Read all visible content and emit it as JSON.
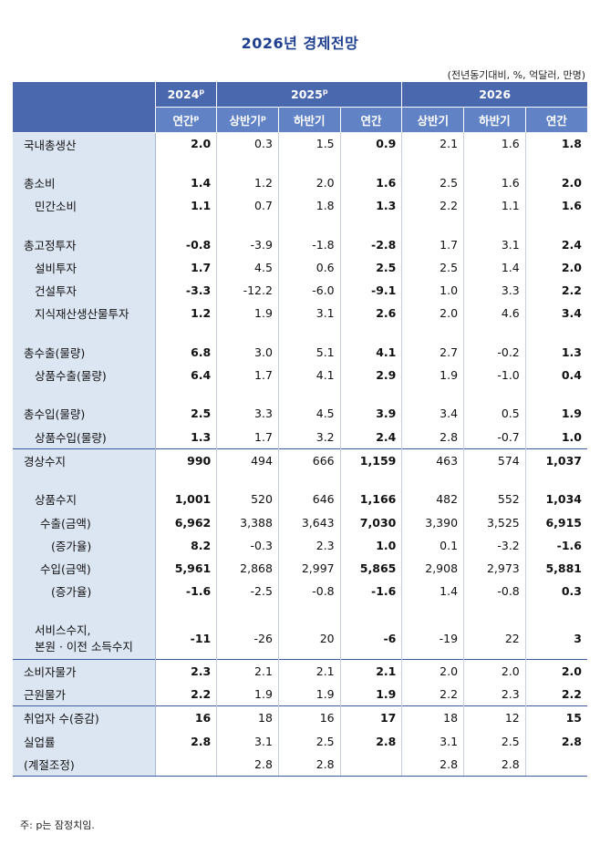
{
  "title": "2026년 경제전망",
  "unit": "(전년동기대비, %, 억달러, 만명)",
  "header": {
    "years": [
      {
        "label": "2024",
        "sup": "p"
      },
      {
        "label": "2025",
        "sup": "p"
      },
      {
        "label": "2026",
        "sup": ""
      }
    ],
    "periods": [
      {
        "label": "연간",
        "sup": "p"
      },
      {
        "label": "상반기",
        "sup": "p"
      },
      {
        "label": "하반기",
        "sup": ""
      },
      {
        "label": "연간",
        "sup": ""
      },
      {
        "label": "상반기",
        "sup": ""
      },
      {
        "label": "하반기",
        "sup": ""
      },
      {
        "label": "연간",
        "sup": ""
      }
    ]
  },
  "rows": [
    {
      "label": "국내총생산",
      "indent": 0,
      "values": [
        "2.0",
        "0.3",
        "1.5",
        "0.9",
        "2.1",
        "1.6",
        "1.8"
      ]
    },
    {
      "gap": true
    },
    {
      "label": "총소비",
      "indent": 0,
      "values": [
        "1.4",
        "1.2",
        "2.0",
        "1.6",
        "2.5",
        "1.6",
        "2.0"
      ]
    },
    {
      "label": "민간소비",
      "indent": 1,
      "values": [
        "1.1",
        "0.7",
        "1.8",
        "1.3",
        "2.2",
        "1.1",
        "1.6"
      ]
    },
    {
      "gap": true
    },
    {
      "label": "총고정투자",
      "indent": 0,
      "values": [
        "-0.8",
        "-3.9",
        "-1.8",
        "-2.8",
        "1.7",
        "3.1",
        "2.4"
      ]
    },
    {
      "label": "설비투자",
      "indent": 1,
      "values": [
        "1.7",
        "4.5",
        "0.6",
        "2.5",
        "2.5",
        "1.4",
        "2.0"
      ]
    },
    {
      "label": "건설투자",
      "indent": 1,
      "values": [
        "-3.3",
        "-12.2",
        "-6.0",
        "-9.1",
        "1.0",
        "3.3",
        "2.2"
      ]
    },
    {
      "label": "지식재산생산물투자",
      "indent": 1,
      "values": [
        "1.2",
        "1.9",
        "3.1",
        "2.6",
        "2.0",
        "4.6",
        "3.4"
      ]
    },
    {
      "gap": true
    },
    {
      "label": "총수출(물량)",
      "indent": 0,
      "values": [
        "6.8",
        "3.0",
        "5.1",
        "4.1",
        "2.7",
        "-0.2",
        "1.3"
      ]
    },
    {
      "label": "상품수출(물량)",
      "indent": 1,
      "values": [
        "6.4",
        "1.7",
        "4.1",
        "2.9",
        "1.9",
        "-1.0",
        "0.4"
      ]
    },
    {
      "gap": true
    },
    {
      "label": "총수입(물량)",
      "indent": 0,
      "values": [
        "2.5",
        "3.3",
        "4.5",
        "3.9",
        "3.4",
        "0.5",
        "1.9"
      ]
    },
    {
      "label": "상품수입(물량)",
      "indent": 1,
      "values": [
        "1.3",
        "1.7",
        "3.2",
        "2.4",
        "2.8",
        "-0.7",
        "1.0"
      ]
    },
    {
      "label": "경상수지",
      "indent": 0,
      "sep": true,
      "values": [
        "990",
        "494",
        "666",
        "1,159",
        "463",
        "574",
        "1,037"
      ]
    },
    {
      "gap": true
    },
    {
      "label": "상품수지",
      "indent": 1,
      "values": [
        "1,001",
        "520",
        "646",
        "1,166",
        "482",
        "552",
        "1,034"
      ]
    },
    {
      "label": "수출(금액)",
      "indent": 2,
      "values": [
        "6,962",
        "3,388",
        "3,643",
        "7,030",
        "3,390",
        "3,525",
        "6,915"
      ]
    },
    {
      "label": "(증가율)",
      "indent": 3,
      "values": [
        "8.2",
        "-0.3",
        "2.3",
        "1.0",
        "0.1",
        "-3.2",
        "-1.6"
      ]
    },
    {
      "label": "수입(금액)",
      "indent": 2,
      "values": [
        "5,961",
        "2,868",
        "2,997",
        "5,865",
        "2,908",
        "2,973",
        "5,881"
      ]
    },
    {
      "label": "(증가율)",
      "indent": 3,
      "values": [
        "-1.6",
        "-2.5",
        "-0.8",
        "-1.6",
        "1.4",
        "-0.8",
        "0.3"
      ]
    },
    {
      "gap": true
    },
    {
      "label": "서비스수지,",
      "label2": "본원 · 이전 소득수지",
      "indent": 1,
      "tall": true,
      "values": [
        "-11",
        "-26",
        "20",
        "-6",
        "-19",
        "22",
        "3"
      ]
    },
    {
      "label": "소비자물가",
      "indent": 0,
      "sep": true,
      "values": [
        "2.3",
        "2.1",
        "2.1",
        "2.1",
        "2.0",
        "2.0",
        "2.0"
      ]
    },
    {
      "label": "근원물가",
      "indent": 0,
      "values": [
        "2.2",
        "1.9",
        "1.9",
        "1.9",
        "2.2",
        "2.3",
        "2.2"
      ]
    },
    {
      "label": "취업자 수(증감)",
      "indent": 0,
      "sep": true,
      "values": [
        "16",
        "18",
        "16",
        "17",
        "18",
        "12",
        "15"
      ]
    },
    {
      "label": "실업률",
      "indent": 0,
      "values": [
        "2.8",
        "3.1",
        "2.5",
        "2.8",
        "3.1",
        "2.5",
        "2.8"
      ]
    },
    {
      "label": "(계절조정)",
      "indent": 0,
      "last": true,
      "values": [
        "",
        "2.8",
        "2.8",
        "",
        "2.8",
        "2.8",
        ""
      ]
    }
  ],
  "note": "주: p는 잠정치임."
}
